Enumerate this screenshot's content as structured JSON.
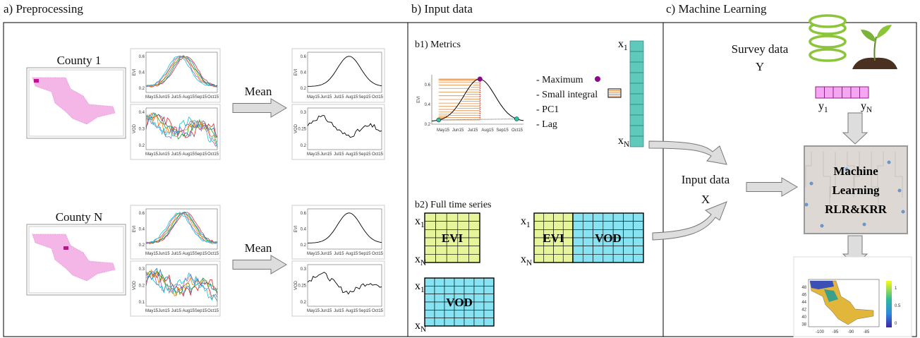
{
  "sections": [
    {
      "title": "a) Preprocessing"
    },
    {
      "title": "b) Input data"
    },
    {
      "title": "c) Machine Learning"
    }
  ],
  "preprocessing": {
    "counties": [
      "County 1",
      "County N"
    ],
    "mean_label": "Mean",
    "evi_axis": "EVI",
    "vod_axis": "VOD",
    "months": [
      "May15",
      "Jun15",
      "Jul15",
      "Aug15",
      "Sep15",
      "Oct15"
    ],
    "evi_ticks": [
      "0.2",
      "0.4",
      "0.6"
    ],
    "vod_ticks_county_1": [
      "0.2",
      "0.3",
      "0.4"
    ],
    "vod_ticks_county_n": [
      "0.1",
      "0.2",
      "0.3"
    ],
    "vod_ticks_mean": [
      "0.2",
      "0.25",
      "0.3"
    ]
  },
  "input_data": {
    "metrics_title": "b1) Metrics",
    "metrics": [
      "- Maximum",
      "- Small integral",
      "- PC1",
      "- Lag"
    ],
    "full_series_title": "b2) Full time series",
    "evi_block": "EVI",
    "vod_block": "VOD",
    "vector_base": "x",
    "first_sub": "1",
    "last_sub": "N",
    "input_label": [
      "Input data",
      "X"
    ]
  },
  "machine_learning": {
    "survey_label": [
      "Survey data",
      "Y"
    ],
    "y_base": "y",
    "model_label": [
      "Machine",
      "Learning",
      "RLR&KRR"
    ],
    "map_lat_ticks": [
      "48",
      "46",
      "44",
      "42",
      "40",
      "38"
    ],
    "map_lon_ticks": [
      "-100",
      "-95",
      "-90",
      "-85"
    ],
    "colorbar_ticks": [
      "1",
      "0.5",
      "0"
    ]
  }
}
